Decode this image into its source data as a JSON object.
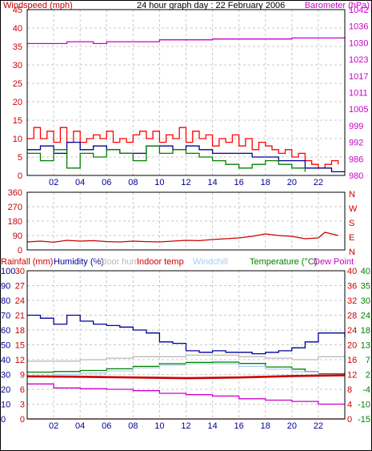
{
  "chart_data": [
    {
      "type": "line",
      "title": "24 hour graph day : 22 February 2006",
      "left_axis": {
        "label": "Windspeed (mph)",
        "color": "#cc0000",
        "ylim": [
          0,
          45
        ],
        "ticks": [
          "0",
          "5",
          "10",
          "15",
          "20",
          "25",
          "30",
          "35",
          "40",
          "45"
        ]
      },
      "right_axis": {
        "label": "Barometer (hPa)",
        "color": "#cc00cc",
        "ylim": [
          980,
          1042
        ],
        "ticks": [
          "980",
          "986",
          "992",
          "999",
          "1005",
          "1011",
          "1017",
          "1023",
          "1030",
          "1036",
          "1042"
        ]
      },
      "x_ticks": [
        "02",
        "04",
        "06",
        "08",
        "10",
        "12",
        "14",
        "16",
        "18",
        "20",
        "22"
      ],
      "xlim": [
        0,
        24
      ],
      "grid": true,
      "series": [
        {
          "color": "#cc00cc",
          "x": [
            0,
            2,
            3,
            4,
            5,
            6,
            8,
            10,
            12,
            14,
            16,
            18,
            20,
            22,
            24
          ],
          "y": [
            1029.3,
            1029.3,
            1030.0,
            1030.0,
            1029.3,
            1030.0,
            1030.0,
            1030.7,
            1030.7,
            1031.0,
            1031.0,
            1031.0,
            1031.4,
            1031.4,
            1031.8
          ]
        },
        {
          "color": "#ff0000",
          "x": [
            0,
            0.5,
            1,
            1.5,
            2,
            2.5,
            3,
            3.5,
            4,
            4.5,
            5,
            5.5,
            6,
            6.5,
            7,
            7.5,
            8,
            8.5,
            9,
            9.5,
            10,
            10.5,
            11,
            11.5,
            12,
            12.5,
            13,
            13.5,
            14,
            14.5,
            15,
            15.5,
            16,
            16.5,
            17,
            17.5,
            18,
            18.5,
            19,
            19.5,
            20,
            20.5,
            21,
            21.5,
            22,
            22.5,
            23,
            23.5
          ],
          "y": [
            10,
            13,
            10,
            12,
            9,
            13,
            9,
            12,
            9,
            10,
            11,
            10,
            12,
            9,
            10,
            9,
            11,
            12,
            10,
            12,
            9,
            11,
            10,
            13,
            9,
            12,
            10,
            11,
            8,
            10,
            9,
            11,
            8,
            10,
            7,
            9,
            8,
            7,
            6,
            7,
            5,
            6,
            4,
            3,
            2,
            3,
            4,
            3
          ]
        },
        {
          "color": "#000099",
          "x": [
            0,
            1,
            2,
            3,
            4,
            5,
            6,
            7,
            8,
            9,
            10,
            11,
            12,
            13,
            14,
            15,
            16,
            17,
            18,
            19,
            20,
            21,
            22,
            23,
            24
          ],
          "y": [
            7,
            8,
            6,
            9,
            7,
            8,
            7,
            6,
            6,
            8,
            8,
            7,
            8,
            7,
            6,
            6,
            6,
            5,
            5,
            4,
            4,
            2,
            2,
            1,
            1
          ]
        },
        {
          "color": "#008000",
          "x": [
            0,
            1,
            2,
            3,
            4,
            5,
            6,
            7,
            8,
            9,
            10,
            11,
            12,
            13,
            14,
            15,
            16,
            17,
            18,
            19,
            20,
            21
          ],
          "y": [
            6,
            4,
            7,
            2,
            6,
            5,
            7,
            6,
            4,
            8,
            6,
            7,
            6,
            5,
            4,
            3,
            2,
            3,
            4,
            3,
            2,
            1
          ]
        }
      ]
    },
    {
      "type": "line",
      "right_axis": {
        "labels": [
          "N",
          "W",
          "S",
          "E",
          "N"
        ],
        "color": "#cc0000"
      },
      "left_axis": {
        "ylim": [
          0,
          360
        ],
        "ticks": [
          "0",
          "90",
          "180",
          "270",
          "360"
        ]
      },
      "x_ticks": [],
      "xlim": [
        0,
        24
      ],
      "grid": true,
      "series": [
        {
          "color": "#cc0000",
          "x": [
            0,
            1,
            2,
            3,
            4,
            5,
            6,
            7,
            8,
            9,
            10,
            11,
            12,
            13,
            14,
            15,
            16,
            17,
            18,
            19,
            20,
            21,
            22,
            22.5,
            23,
            23.5
          ],
          "y": [
            50,
            55,
            48,
            60,
            55,
            58,
            52,
            50,
            55,
            52,
            50,
            55,
            60,
            58,
            65,
            70,
            75,
            85,
            100,
            90,
            85,
            70,
            75,
            110,
            100,
            90
          ]
        }
      ]
    },
    {
      "type": "line",
      "legend": [
        {
          "label": "Rainfall (mm)",
          "color": "#cc0000"
        },
        {
          "label": "Humidity (%)",
          "color": "#000099"
        },
        {
          "label": "Indoor hum",
          "color": "#bbbbbb"
        },
        {
          "label": "Indoor temp",
          "color": "#cc0000"
        },
        {
          "label": "Windchill",
          "color": "#aaccee"
        },
        {
          "label": "Temperature (°C)",
          "color": "#008000"
        },
        {
          "label": "Dew Point",
          "color": "#cc00cc"
        }
      ],
      "left_axis_1": {
        "ticks": [
          "0",
          "10",
          "20",
          "30",
          "40",
          "50",
          "60",
          "70",
          "80",
          "90",
          "100"
        ],
        "color": "#000099",
        "ylim": [
          0,
          100
        ]
      },
      "left_axis_2": {
        "ticks": [
          "0",
          "3",
          "6",
          "9",
          "12",
          "15",
          "18",
          "21",
          "24",
          "27",
          "30"
        ],
        "color": "#cc0000",
        "ylim": [
          0,
          30
        ]
      },
      "right_axis_1": {
        "ticks": [
          "0",
          "4",
          "8",
          "12",
          "16",
          "20",
          "24",
          "28",
          "32",
          "36",
          "40"
        ],
        "color": "#cc0000",
        "ylim": [
          0,
          40
        ]
      },
      "right_axis_2": {
        "ticks": [
          "-15",
          "-10",
          "-4",
          "2",
          "7",
          "13",
          "18",
          "24",
          "30",
          "35",
          "40"
        ],
        "color": "#008000",
        "ylim": [
          -15,
          40
        ]
      },
      "x_ticks": [
        "02",
        "04",
        "06",
        "08",
        "10",
        "12",
        "14",
        "16",
        "18",
        "20",
        "22"
      ],
      "xlim": [
        0,
        24
      ],
      "grid": true,
      "series": [
        {
          "name": "Humidity (%)",
          "color": "#000099",
          "x": [
            0,
            1,
            2,
            3,
            4,
            5,
            6,
            7,
            8,
            9,
            10,
            11,
            12,
            13,
            14,
            15,
            16,
            17,
            18,
            19,
            20,
            21,
            22,
            23,
            24
          ],
          "y": [
            70,
            68,
            64,
            70,
            66,
            64,
            63,
            62,
            60,
            58,
            52,
            51,
            46,
            45,
            46,
            45,
            45,
            44,
            45,
            46,
            48,
            52,
            58,
            58,
            55
          ]
        },
        {
          "name": "Indoor hum",
          "color": "#bbbbbb",
          "x": [
            0,
            2,
            4,
            6,
            8,
            10,
            12,
            14,
            16,
            18,
            20,
            22,
            24
          ],
          "y": [
            39,
            39,
            40,
            41,
            42,
            42,
            43,
            43,
            42,
            41,
            40,
            42,
            43
          ]
        },
        {
          "name": "Temperature (°C)",
          "color": "#008000",
          "x": [
            0,
            2,
            4,
            6,
            8,
            10,
            12,
            14,
            16,
            18,
            20,
            21,
            22,
            24
          ],
          "y": [
            2.4,
            2.6,
            3.0,
            3.6,
            4.5,
            5.5,
            6.0,
            6.1,
            5.6,
            4.3,
            3.5,
            2.6,
            1.8,
            2.3
          ]
        },
        {
          "name": "Windchill",
          "color": "#aaccee",
          "x": [
            0,
            2,
            4,
            6,
            8,
            10,
            12,
            14,
            16,
            18,
            20,
            22,
            24
          ],
          "y": [
            1.0,
            1.5,
            2.0,
            2.8,
            4.0,
            5.0,
            5.5,
            5.5,
            4.5,
            3.5,
            2.5,
            1.5,
            1.5
          ]
        },
        {
          "name": "Indoor temp",
          "color": "#cc0000",
          "x": [
            0,
            4,
            8,
            12,
            16,
            20,
            24
          ],
          "y": [
            11.5,
            11.4,
            11.2,
            11.0,
            11.2,
            11.6,
            11.8
          ]
        },
        {
          "name": "Dew Point",
          "color": "#cc00cc",
          "x": [
            0,
            2,
            4,
            6,
            8,
            10,
            12,
            14,
            16,
            18,
            20,
            22,
            24
          ],
          "y": [
            -2.0,
            -3.5,
            -3.8,
            -4.0,
            -4.5,
            -5.5,
            -6.0,
            -6.5,
            -7.5,
            -8.0,
            -8.5,
            -9.5,
            -9.5
          ]
        },
        {
          "name": "Rainfall (mm)",
          "color": "#cc0000",
          "x": [
            0,
            24
          ],
          "y": [
            0,
            0
          ]
        }
      ]
    }
  ]
}
